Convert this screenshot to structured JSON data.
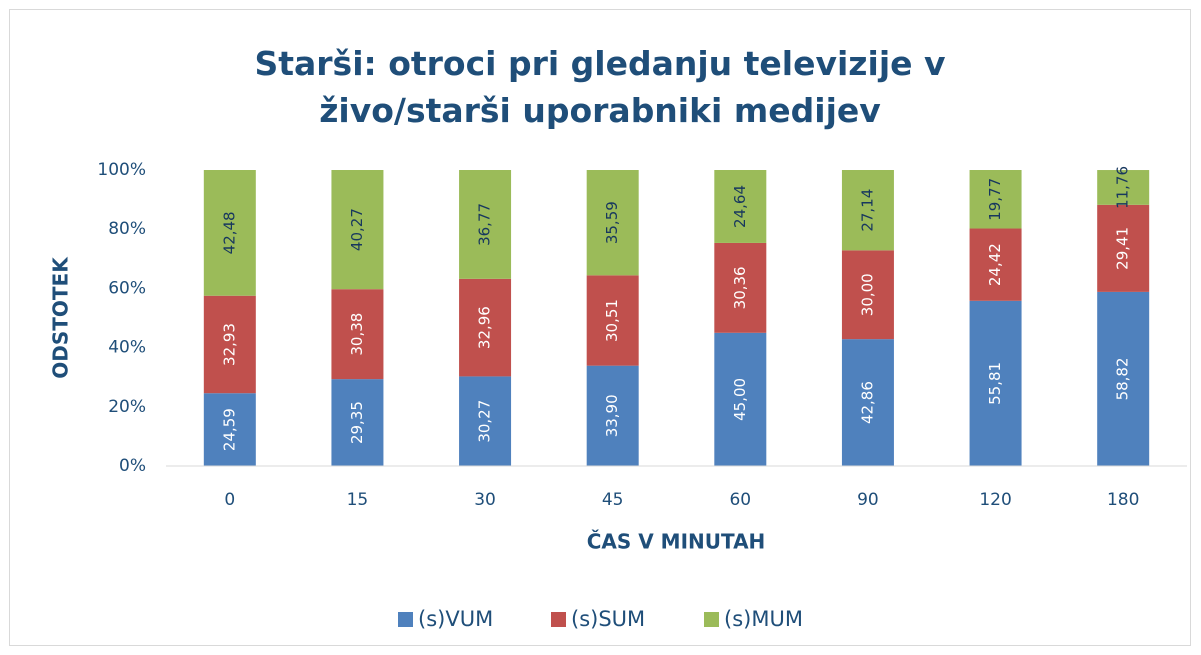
{
  "chart_data": {
    "type": "stacked_bar",
    "title": "Starši: otroci pri gledanju televizije v živo/starši uporabniki medijev",
    "x_label": "ČAS V MINUTAH",
    "y_label": "ODSTOTEK",
    "categories": [
      "0",
      "15",
      "30",
      "45",
      "60",
      "90",
      "120",
      "180"
    ],
    "series": [
      {
        "name": "(s)VUM",
        "color": "#4f81bd",
        "label_color": "#ffffff",
        "values": [
          24.59,
          29.35,
          30.27,
          33.9,
          45.0,
          42.86,
          55.81,
          58.82
        ],
        "value_labels": [
          "24,59",
          "29,35",
          "30,27",
          "33,90",
          "45,00",
          "42,86",
          "55,81",
          "58,82"
        ]
      },
      {
        "name": "(s)SUM",
        "color": "#c0504d",
        "label_color": "#ffffff",
        "values": [
          32.93,
          30.38,
          32.96,
          30.51,
          30.36,
          30.0,
          24.42,
          29.41
        ],
        "value_labels": [
          "32,93",
          "30,38",
          "32,96",
          "30,51",
          "30,36",
          "30,00",
          "24,42",
          "29,41"
        ]
      },
      {
        "name": "(s)MUM",
        "color": "#9bbb59",
        "label_color": "#17375e",
        "values": [
          42.48,
          40.27,
          36.77,
          35.59,
          24.64,
          27.14,
          19.77,
          11.76
        ],
        "value_labels": [
          "42,48",
          "40,27",
          "36,77",
          "35,59",
          "24,64",
          "27,14",
          "19,77",
          "11,76"
        ]
      }
    ],
    "ylim": [
      0,
      100
    ],
    "yticks": [
      {
        "value": 0,
        "label": "0%"
      },
      {
        "value": 20,
        "label": "20%"
      },
      {
        "value": 40,
        "label": "40%"
      },
      {
        "value": 60,
        "label": "60%"
      },
      {
        "value": 80,
        "label": "80%"
      },
      {
        "value": 100,
        "label": "100%"
      }
    ],
    "grid": false,
    "legend": "bottom"
  }
}
